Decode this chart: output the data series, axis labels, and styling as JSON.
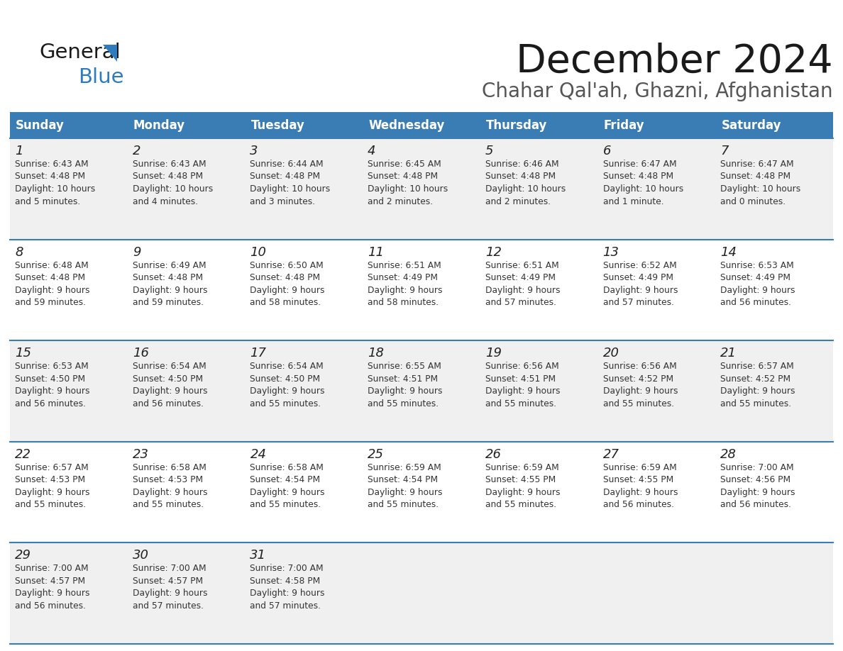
{
  "title": "December 2024",
  "subtitle": "Chahar Qal'ah, Ghazni, Afghanistan",
  "days_of_week": [
    "Sunday",
    "Monday",
    "Tuesday",
    "Wednesday",
    "Thursday",
    "Friday",
    "Saturday"
  ],
  "header_bg": "#3a7db5",
  "header_text_color": "#ffffff",
  "row_bg_odd": "#f0f0f0",
  "row_bg_even": "#ffffff",
  "cell_text_color": "#333333",
  "day_num_color": "#222222",
  "border_color": "#3a7db5",
  "logo_general_color": "#1a1a1a",
  "logo_blue_color": "#2e7bbf",
  "logo_triangle_color": "#2e7bbf",
  "title_color": "#1a1a1a",
  "subtitle_color": "#555555",
  "calendar": [
    [
      {
        "day": 1,
        "sunrise": "6:43 AM",
        "sunset": "4:48 PM",
        "daylight": "10 hours and 5 minutes"
      },
      {
        "day": 2,
        "sunrise": "6:43 AM",
        "sunset": "4:48 PM",
        "daylight": "10 hours and 4 minutes"
      },
      {
        "day": 3,
        "sunrise": "6:44 AM",
        "sunset": "4:48 PM",
        "daylight": "10 hours and 3 minutes"
      },
      {
        "day": 4,
        "sunrise": "6:45 AM",
        "sunset": "4:48 PM",
        "daylight": "10 hours and 2 minutes"
      },
      {
        "day": 5,
        "sunrise": "6:46 AM",
        "sunset": "4:48 PM",
        "daylight": "10 hours and 2 minutes"
      },
      {
        "day": 6,
        "sunrise": "6:47 AM",
        "sunset": "4:48 PM",
        "daylight": "10 hours and 1 minute"
      },
      {
        "day": 7,
        "sunrise": "6:47 AM",
        "sunset": "4:48 PM",
        "daylight": "10 hours and 0 minutes"
      }
    ],
    [
      {
        "day": 8,
        "sunrise": "6:48 AM",
        "sunset": "4:48 PM",
        "daylight": "9 hours and 59 minutes"
      },
      {
        "day": 9,
        "sunrise": "6:49 AM",
        "sunset": "4:48 PM",
        "daylight": "9 hours and 59 minutes"
      },
      {
        "day": 10,
        "sunrise": "6:50 AM",
        "sunset": "4:48 PM",
        "daylight": "9 hours and 58 minutes"
      },
      {
        "day": 11,
        "sunrise": "6:51 AM",
        "sunset": "4:49 PM",
        "daylight": "9 hours and 58 minutes"
      },
      {
        "day": 12,
        "sunrise": "6:51 AM",
        "sunset": "4:49 PM",
        "daylight": "9 hours and 57 minutes"
      },
      {
        "day": 13,
        "sunrise": "6:52 AM",
        "sunset": "4:49 PM",
        "daylight": "9 hours and 57 minutes"
      },
      {
        "day": 14,
        "sunrise": "6:53 AM",
        "sunset": "4:49 PM",
        "daylight": "9 hours and 56 minutes"
      }
    ],
    [
      {
        "day": 15,
        "sunrise": "6:53 AM",
        "sunset": "4:50 PM",
        "daylight": "9 hours and 56 minutes"
      },
      {
        "day": 16,
        "sunrise": "6:54 AM",
        "sunset": "4:50 PM",
        "daylight": "9 hours and 56 minutes"
      },
      {
        "day": 17,
        "sunrise": "6:54 AM",
        "sunset": "4:50 PM",
        "daylight": "9 hours and 55 minutes"
      },
      {
        "day": 18,
        "sunrise": "6:55 AM",
        "sunset": "4:51 PM",
        "daylight": "9 hours and 55 minutes"
      },
      {
        "day": 19,
        "sunrise": "6:56 AM",
        "sunset": "4:51 PM",
        "daylight": "9 hours and 55 minutes"
      },
      {
        "day": 20,
        "sunrise": "6:56 AM",
        "sunset": "4:52 PM",
        "daylight": "9 hours and 55 minutes"
      },
      {
        "day": 21,
        "sunrise": "6:57 AM",
        "sunset": "4:52 PM",
        "daylight": "9 hours and 55 minutes"
      }
    ],
    [
      {
        "day": 22,
        "sunrise": "6:57 AM",
        "sunset": "4:53 PM",
        "daylight": "9 hours and 55 minutes"
      },
      {
        "day": 23,
        "sunrise": "6:58 AM",
        "sunset": "4:53 PM",
        "daylight": "9 hours and 55 minutes"
      },
      {
        "day": 24,
        "sunrise": "6:58 AM",
        "sunset": "4:54 PM",
        "daylight": "9 hours and 55 minutes"
      },
      {
        "day": 25,
        "sunrise": "6:59 AM",
        "sunset": "4:54 PM",
        "daylight": "9 hours and 55 minutes"
      },
      {
        "day": 26,
        "sunrise": "6:59 AM",
        "sunset": "4:55 PM",
        "daylight": "9 hours and 55 minutes"
      },
      {
        "day": 27,
        "sunrise": "6:59 AM",
        "sunset": "4:55 PM",
        "daylight": "9 hours and 56 minutes"
      },
      {
        "day": 28,
        "sunrise": "7:00 AM",
        "sunset": "4:56 PM",
        "daylight": "9 hours and 56 minutes"
      }
    ],
    [
      {
        "day": 29,
        "sunrise": "7:00 AM",
        "sunset": "4:57 PM",
        "daylight": "9 hours and 56 minutes"
      },
      {
        "day": 30,
        "sunrise": "7:00 AM",
        "sunset": "4:57 PM",
        "daylight": "9 hours and 57 minutes"
      },
      {
        "day": 31,
        "sunrise": "7:00 AM",
        "sunset": "4:58 PM",
        "daylight": "9 hours and 57 minutes"
      },
      null,
      null,
      null,
      null
    ]
  ]
}
